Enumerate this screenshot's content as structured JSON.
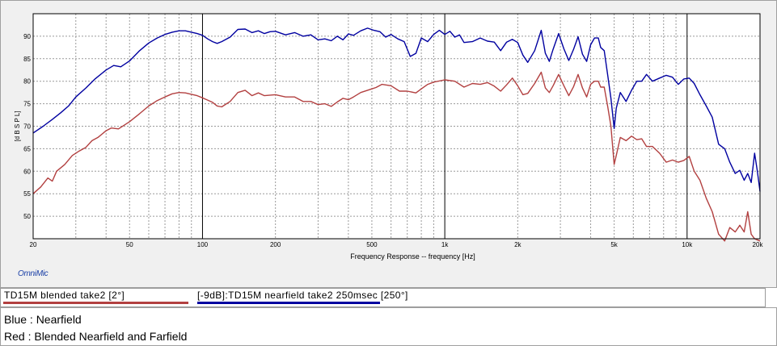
{
  "chart_data": {
    "type": "line",
    "x_scale": "log",
    "grid": true,
    "xlabel": "Frequency Response -- frequency [Hz]",
    "ylabel": "[d B S P L]",
    "xlim": [
      20,
      20000
    ],
    "ylim": [
      45,
      95
    ],
    "x_ticks": [
      {
        "value": 20,
        "label": "20"
      },
      {
        "value": 50,
        "label": "50"
      },
      {
        "value": 100,
        "label": "100"
      },
      {
        "value": 200,
        "label": "200"
      },
      {
        "value": 500,
        "label": "500"
      },
      {
        "value": 1000,
        "label": "1k"
      },
      {
        "value": 2000,
        "label": "2k"
      },
      {
        "value": 5000,
        "label": "5k"
      },
      {
        "value": 10000,
        "label": "10k"
      },
      {
        "value": 20000,
        "label": "20k"
      }
    ],
    "y_ticks": [
      50,
      55,
      60,
      65,
      70,
      75,
      80,
      85,
      90
    ],
    "series": [
      {
        "name": "[-9dB]:TD15M nearfield take2 250msec [250°]",
        "color": "#0000a0",
        "points": [
          [
            20,
            68.5
          ],
          [
            22,
            70
          ],
          [
            24,
            71.5
          ],
          [
            26,
            73
          ],
          [
            28,
            74.5
          ],
          [
            30,
            76.5
          ],
          [
            33,
            78.5
          ],
          [
            36,
            80.5
          ],
          [
            40,
            82.5
          ],
          [
            43,
            83.5
          ],
          [
            46,
            83.2
          ],
          [
            50,
            84.5
          ],
          [
            55,
            86.8
          ],
          [
            60,
            88.5
          ],
          [
            65,
            89.6
          ],
          [
            70,
            90.4
          ],
          [
            75,
            90.9
          ],
          [
            80,
            91.2
          ],
          [
            85,
            91.2
          ],
          [
            90,
            90.9
          ],
          [
            95,
            90.6
          ],
          [
            100,
            90.2
          ],
          [
            105,
            89.4
          ],
          [
            110,
            88.8
          ],
          [
            115,
            88.4
          ],
          [
            120,
            88.8
          ],
          [
            130,
            89.8
          ],
          [
            140,
            91.5
          ],
          [
            150,
            91.6
          ],
          [
            160,
            90.8
          ],
          [
            170,
            91.2
          ],
          [
            180,
            90.6
          ],
          [
            190,
            91.0
          ],
          [
            200,
            91.1
          ],
          [
            220,
            90.3
          ],
          [
            240,
            90.8
          ],
          [
            260,
            90.0
          ],
          [
            280,
            90.3
          ],
          [
            300,
            89.2
          ],
          [
            320,
            89.4
          ],
          [
            340,
            89.0
          ],
          [
            360,
            90.0
          ],
          [
            380,
            89.2
          ],
          [
            400,
            90.5
          ],
          [
            420,
            90.2
          ],
          [
            450,
            91.2
          ],
          [
            480,
            91.8
          ],
          [
            510,
            91.3
          ],
          [
            540,
            91.0
          ],
          [
            570,
            89.8
          ],
          [
            600,
            90.4
          ],
          [
            640,
            89.4
          ],
          [
            680,
            88.8
          ],
          [
            720,
            85.5
          ],
          [
            760,
            86.2
          ],
          [
            800,
            89.6
          ],
          [
            850,
            88.8
          ],
          [
            900,
            90.4
          ],
          [
            950,
            91.3
          ],
          [
            1000,
            90.4
          ],
          [
            1050,
            91.1
          ],
          [
            1100,
            89.8
          ],
          [
            1150,
            90.3
          ],
          [
            1200,
            88.6
          ],
          [
            1300,
            88.8
          ],
          [
            1400,
            89.6
          ],
          [
            1500,
            88.9
          ],
          [
            1600,
            88.7
          ],
          [
            1700,
            86.8
          ],
          [
            1800,
            88.7
          ],
          [
            1900,
            89.3
          ],
          [
            2000,
            88.6
          ],
          [
            2100,
            85.8
          ],
          [
            2200,
            84.2
          ],
          [
            2350,
            86.8
          ],
          [
            2500,
            91.3
          ],
          [
            2600,
            86.2
          ],
          [
            2700,
            84.4
          ],
          [
            2800,
            87.1
          ],
          [
            2950,
            90.6
          ],
          [
            3100,
            87.2
          ],
          [
            3250,
            84.6
          ],
          [
            3400,
            87.1
          ],
          [
            3550,
            89.9
          ],
          [
            3700,
            86.0
          ],
          [
            3850,
            84.4
          ],
          [
            4000,
            88.1
          ],
          [
            4150,
            89.6
          ],
          [
            4300,
            89.6
          ],
          [
            4400,
            87.5
          ],
          [
            4550,
            86.8
          ],
          [
            4700,
            81.5
          ],
          [
            4850,
            76.2
          ],
          [
            5000,
            69.5
          ],
          [
            5100,
            74.0
          ],
          [
            5300,
            77.5
          ],
          [
            5600,
            75.5
          ],
          [
            5900,
            78.0
          ],
          [
            6200,
            80.0
          ],
          [
            6500,
            80.0
          ],
          [
            6800,
            81.5
          ],
          [
            7200,
            80.0
          ],
          [
            7700,
            80.7
          ],
          [
            8200,
            81.3
          ],
          [
            8700,
            80.9
          ],
          [
            9200,
            79.3
          ],
          [
            9700,
            80.5
          ],
          [
            10200,
            80.7
          ],
          [
            10700,
            79.5
          ],
          [
            11300,
            77.0
          ],
          [
            12000,
            74.5
          ],
          [
            12700,
            72.0
          ],
          [
            13500,
            66.0
          ],
          [
            14300,
            65.0
          ],
          [
            15000,
            62.0
          ],
          [
            15800,
            59.5
          ],
          [
            16500,
            60.2
          ],
          [
            17200,
            58.0
          ],
          [
            17800,
            59.5
          ],
          [
            18400,
            57.5
          ],
          [
            19000,
            64.0
          ],
          [
            19500,
            60.0
          ],
          [
            20000,
            55.5
          ]
        ]
      },
      {
        "name": "TD15M blended take2 [2°]",
        "color": "#b24040",
        "points": [
          [
            20,
            55.0
          ],
          [
            21.5,
            56.5
          ],
          [
            23,
            58.5
          ],
          [
            24,
            57.8
          ],
          [
            25,
            60.0
          ],
          [
            27,
            61.5
          ],
          [
            29,
            63.5
          ],
          [
            31,
            64.5
          ],
          [
            33,
            65.3
          ],
          [
            35,
            66.8
          ],
          [
            37,
            67.5
          ],
          [
            40,
            69.0
          ],
          [
            42,
            69.6
          ],
          [
            45,
            69.4
          ],
          [
            50,
            71.0
          ],
          [
            55,
            72.8
          ],
          [
            60,
            74.5
          ],
          [
            65,
            75.7
          ],
          [
            70,
            76.5
          ],
          [
            75,
            77.2
          ],
          [
            80,
            77.5
          ],
          [
            85,
            77.4
          ],
          [
            90,
            77.1
          ],
          [
            95,
            76.8
          ],
          [
            100,
            76.3
          ],
          [
            110,
            75.3
          ],
          [
            115,
            74.5
          ],
          [
            120,
            74.3
          ],
          [
            130,
            75.5
          ],
          [
            140,
            77.5
          ],
          [
            150,
            78.0
          ],
          [
            160,
            76.8
          ],
          [
            170,
            77.4
          ],
          [
            180,
            76.8
          ],
          [
            200,
            77.0
          ],
          [
            220,
            76.5
          ],
          [
            240,
            76.5
          ],
          [
            260,
            75.5
          ],
          [
            280,
            75.5
          ],
          [
            300,
            74.8
          ],
          [
            320,
            75.0
          ],
          [
            340,
            74.4
          ],
          [
            360,
            75.4
          ],
          [
            380,
            76.2
          ],
          [
            400,
            75.9
          ],
          [
            420,
            76.5
          ],
          [
            450,
            77.5
          ],
          [
            480,
            78.0
          ],
          [
            500,
            78.3
          ],
          [
            520,
            78.6
          ],
          [
            550,
            79.3
          ],
          [
            600,
            79.0
          ],
          [
            650,
            77.8
          ],
          [
            700,
            77.8
          ],
          [
            760,
            77.4
          ],
          [
            800,
            78.3
          ],
          [
            850,
            79.3
          ],
          [
            900,
            79.8
          ],
          [
            1000,
            80.3
          ],
          [
            1100,
            80.0
          ],
          [
            1200,
            78.7
          ],
          [
            1300,
            79.5
          ],
          [
            1400,
            79.3
          ],
          [
            1500,
            79.7
          ],
          [
            1600,
            78.9
          ],
          [
            1700,
            77.8
          ],
          [
            1800,
            79.2
          ],
          [
            1900,
            80.7
          ],
          [
            2000,
            79.0
          ],
          [
            2100,
            77.0
          ],
          [
            2200,
            77.3
          ],
          [
            2350,
            79.5
          ],
          [
            2500,
            82.0
          ],
          [
            2600,
            78.5
          ],
          [
            2700,
            77.5
          ],
          [
            2800,
            79.0
          ],
          [
            2950,
            81.5
          ],
          [
            3100,
            79.0
          ],
          [
            3250,
            76.8
          ],
          [
            3400,
            78.8
          ],
          [
            3550,
            81.5
          ],
          [
            3700,
            78.5
          ],
          [
            3850,
            76.5
          ],
          [
            4000,
            79.3
          ],
          [
            4150,
            80.0
          ],
          [
            4300,
            80.0
          ],
          [
            4400,
            78.7
          ],
          [
            4550,
            78.7
          ],
          [
            4700,
            74.5
          ],
          [
            4850,
            70.0
          ],
          [
            5000,
            61.5
          ],
          [
            5100,
            63.5
          ],
          [
            5300,
            67.5
          ],
          [
            5600,
            66.8
          ],
          [
            5900,
            67.8
          ],
          [
            6200,
            67.0
          ],
          [
            6500,
            67.2
          ],
          [
            6800,
            65.5
          ],
          [
            7200,
            65.5
          ],
          [
            7700,
            64.0
          ],
          [
            8200,
            62.0
          ],
          [
            8700,
            62.5
          ],
          [
            9200,
            62.0
          ],
          [
            9700,
            62.4
          ],
          [
            10200,
            63.3
          ],
          [
            10700,
            60.0
          ],
          [
            11300,
            58.0
          ],
          [
            12000,
            54.0
          ],
          [
            12700,
            51.0
          ],
          [
            13500,
            46.0
          ],
          [
            14300,
            44.5
          ],
          [
            15000,
            47.5
          ],
          [
            15800,
            46.5
          ],
          [
            16500,
            48.0
          ],
          [
            17200,
            46.5
          ],
          [
            17800,
            51.0
          ],
          [
            18400,
            46.0
          ],
          [
            19000,
            45.0
          ],
          [
            20000,
            44.5
          ]
        ]
      }
    ]
  },
  "legend": {
    "entries": [
      {
        "label": "TD15M blended take2 [2°]",
        "color": "#b24040"
      },
      {
        "label": "[-9dB]:TD15M nearfield take2 250msec [250°]",
        "color": "#0000a0"
      }
    ]
  },
  "brand": "OmniMic",
  "notes": [
    "Blue : Nearfield",
    "Red : Blended Nearfield and Farfield"
  ]
}
